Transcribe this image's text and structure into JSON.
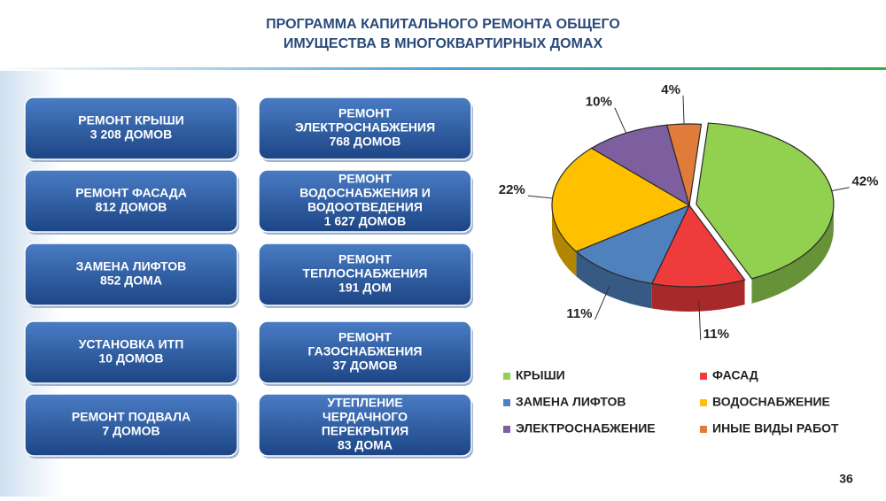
{
  "title": [
    "ПРОГРАММА КАПИТАЛЬНОГО РЕМОНТА ОБЩЕГО",
    "ИМУЩЕСТВА В МНОГОКВАРТИРНЫХ ДОМАХ"
  ],
  "boxes": [
    {
      "lines": [
        "РЕМОНТ КРЫШИ",
        "3 208 ДОМОВ"
      ]
    },
    {
      "lines": [
        "РЕМОНТ ФАСАДА",
        "812 ДОМОВ"
      ]
    },
    {
      "lines": [
        "ЗАМЕНА ЛИФТОВ",
        "852 ДОМА"
      ]
    },
    {
      "lines": [
        "УСТАНОВКА ИТП",
        "10 ДОМОВ"
      ]
    },
    {
      "lines": [
        "РЕМОНТ ПОДВАЛА",
        "7 ДОМОВ"
      ]
    },
    {
      "lines": [
        "РЕМОНТ",
        "ЭЛЕКТРОСНАБЖЕНИЯ",
        "768 ДОМОВ"
      ]
    },
    {
      "lines": [
        "РЕМОНТ",
        "ВОДОСНАБЖЕНИЯ И",
        "ВОДООТВЕДЕНИЯ",
        "1 627 ДОМОВ"
      ]
    },
    {
      "lines": [
        "РЕМОНТ",
        "ТЕПЛОСНАБЖЕНИЯ",
        "191 ДОМ"
      ]
    },
    {
      "lines": [
        "РЕМОНТ",
        "ГАЗОСНАБЖЕНИЯ",
        "37 ДОМОВ"
      ]
    },
    {
      "lines": [
        "УТЕПЛЕНИЕ",
        "ЧЕРДАЧНОГО",
        "ПЕРЕКРЫТИЯ",
        "83 ДОМА"
      ]
    }
  ],
  "page_number": 36,
  "chart_data": {
    "type": "pie",
    "categories": [
      "КРЫШИ",
      "ФАСАД",
      "ЗАМЕНА ЛИФТОВ",
      "ВОДОСНАБЖЕНИЕ",
      "ЭЛЕКТРОСНАБЖЕНИЕ",
      "ИНЫЕ ВИДЫ РАБОТ"
    ],
    "values": [
      42,
      11,
      11,
      22,
      10,
      4
    ],
    "value_labels": [
      "42%",
      "11%",
      "11%",
      "22%",
      "10%",
      "4%"
    ],
    "colors": [
      "#92d050",
      "#ee3b3b",
      "#4f81bd",
      "#ffc000",
      "#7d5fa0",
      "#e07b39"
    ]
  }
}
